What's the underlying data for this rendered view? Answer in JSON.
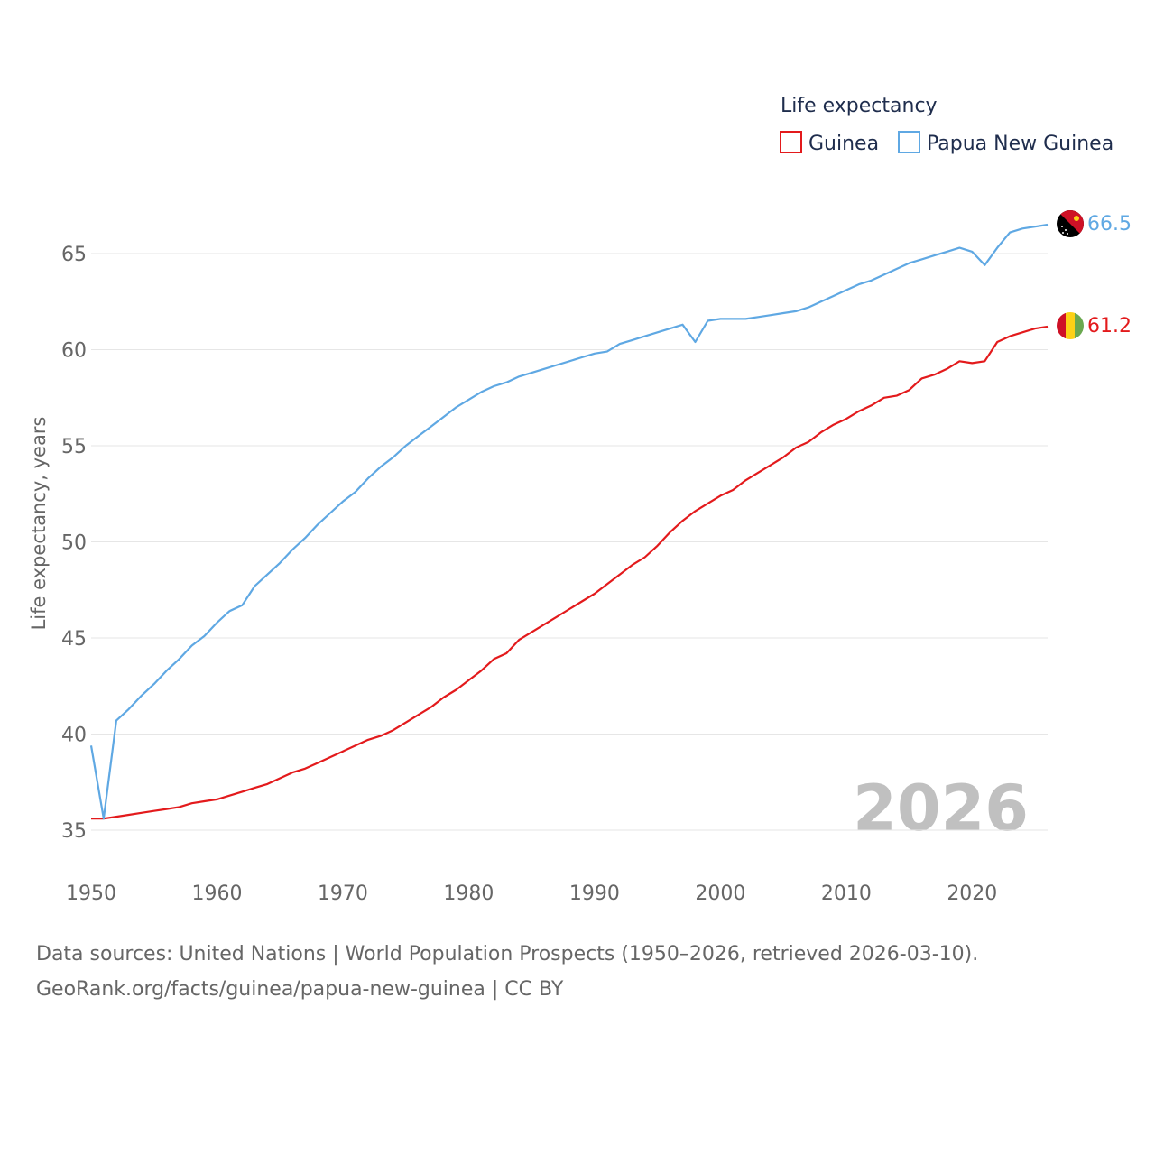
{
  "chart_data": {
    "type": "line",
    "legend_title": "Life expectancy",
    "legend_position": "top-right",
    "ylabel": "Life expectancy, years",
    "xlabel": "",
    "xlim": [
      1950,
      2026
    ],
    "ylim": [
      35,
      67
    ],
    "x_ticks": [
      1950,
      1960,
      1970,
      1980,
      1990,
      2000,
      2010,
      2020
    ],
    "y_ticks": [
      35,
      40,
      45,
      50,
      55,
      60,
      65
    ],
    "grid": true,
    "current_year_label": "2026",
    "x": [
      1950,
      1951,
      1952,
      1953,
      1954,
      1955,
      1956,
      1957,
      1958,
      1959,
      1960,
      1961,
      1962,
      1963,
      1964,
      1965,
      1966,
      1967,
      1968,
      1969,
      1970,
      1971,
      1972,
      1973,
      1974,
      1975,
      1976,
      1977,
      1978,
      1979,
      1980,
      1981,
      1982,
      1983,
      1984,
      1985,
      1986,
      1987,
      1988,
      1989,
      1990,
      1991,
      1992,
      1993,
      1994,
      1995,
      1996,
      1997,
      1998,
      1999,
      2000,
      2001,
      2002,
      2003,
      2004,
      2005,
      2006,
      2007,
      2008,
      2009,
      2010,
      2011,
      2012,
      2013,
      2014,
      2015,
      2016,
      2017,
      2018,
      2019,
      2020,
      2021,
      2022,
      2023,
      2024,
      2025,
      2026
    ],
    "series": [
      {
        "name": "Guinea",
        "color": "#e31a1c",
        "end_label": "61.2",
        "values": [
          35.6,
          35.6,
          35.7,
          35.8,
          35.9,
          36.0,
          36.1,
          36.2,
          36.4,
          36.5,
          36.6,
          36.8,
          37.0,
          37.2,
          37.4,
          37.7,
          38.0,
          38.2,
          38.5,
          38.8,
          39.1,
          39.4,
          39.7,
          39.9,
          40.2,
          40.6,
          41.0,
          41.4,
          41.9,
          42.3,
          42.8,
          43.3,
          43.9,
          44.2,
          44.9,
          45.3,
          45.7,
          46.1,
          46.5,
          46.9,
          47.3,
          47.8,
          48.3,
          48.8,
          49.2,
          49.8,
          50.5,
          51.1,
          51.6,
          52.0,
          52.4,
          52.7,
          53.2,
          53.6,
          54.0,
          54.4,
          54.9,
          55.2,
          55.7,
          56.1,
          56.4,
          56.8,
          57.1,
          57.5,
          57.6,
          57.9,
          58.5,
          58.7,
          59.0,
          59.4,
          59.3,
          59.4,
          60.4,
          60.7,
          60.9,
          61.1,
          61.2
        ]
      },
      {
        "name": "Papua New Guinea",
        "color": "#5fa8e3",
        "end_label": "66.5",
        "values": [
          39.4,
          35.6,
          40.7,
          41.3,
          42.0,
          42.6,
          43.3,
          43.9,
          44.6,
          45.1,
          45.8,
          46.4,
          46.7,
          47.7,
          48.3,
          48.9,
          49.6,
          50.2,
          50.9,
          51.5,
          52.1,
          52.6,
          53.3,
          53.9,
          54.4,
          55.0,
          55.5,
          56.0,
          56.5,
          57.0,
          57.4,
          57.8,
          58.1,
          58.3,
          58.6,
          58.8,
          59.0,
          59.2,
          59.4,
          59.6,
          59.8,
          59.9,
          60.3,
          60.5,
          60.7,
          60.9,
          61.1,
          61.3,
          60.4,
          61.5,
          61.6,
          61.6,
          61.6,
          61.7,
          61.8,
          61.9,
          62.0,
          62.2,
          62.5,
          62.8,
          63.1,
          63.4,
          63.6,
          63.9,
          64.2,
          64.5,
          64.7,
          64.9,
          65.1,
          65.3,
          65.1,
          64.4,
          65.3,
          66.1,
          66.3,
          66.4,
          66.5
        ]
      }
    ]
  },
  "source": {
    "line1": "Data sources: United Nations | World Population Prospects (1950–2026, retrieved 2026-03-10).",
    "line2": "GeoRank.org/facts/guinea/papua-new-guinea | CC BY"
  }
}
